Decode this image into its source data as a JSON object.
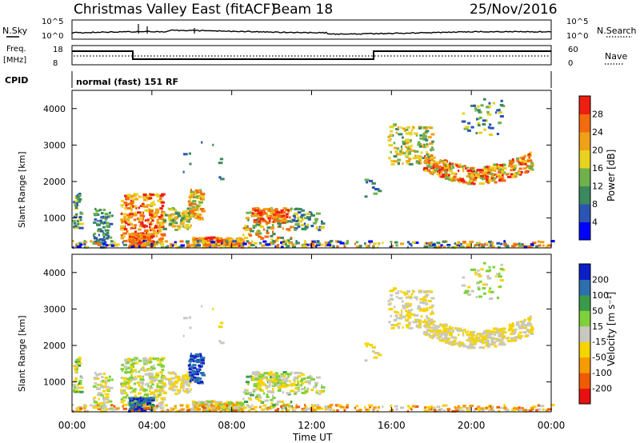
{
  "header": {
    "title": "Christmas Valley East (fitACF)",
    "beam": "Beam 18",
    "date": "25/Nov/2016"
  },
  "status_panels": {
    "nsky_label": "N.Sky",
    "nsearch_label": "N.Search",
    "freq_label_1": "Freq.",
    "freq_label_2": "[MHz]",
    "nave_label": "Nave",
    "cpid_label": "CPID",
    "left_ticks_top": [
      "10^5",
      "10^0"
    ],
    "right_ticks_top": [
      "10^5",
      "10^0"
    ],
    "left_ticks_freq": [
      "18",
      "8"
    ],
    "right_ticks_nave": [
      "60",
      "0"
    ],
    "cpid_text": "normal (fast) 151 RF"
  },
  "chart_data": [
    {
      "type": "heatmap",
      "name": "power",
      "ylabel": "Slant Range [km]",
      "yticks": [
        "1000",
        "2000",
        "3000",
        "4000"
      ],
      "ylim": [
        180,
        4500
      ],
      "xlim_hours": [
        0,
        24
      ],
      "colorbar_label": "Power [dB]",
      "colorbar_ticks": [
        "4",
        "8",
        "12",
        "16",
        "20",
        "24",
        "28"
      ],
      "colorbar_colors": [
        "#0000ff",
        "#2b55b4",
        "#3b8a5e",
        "#6fb14a",
        "#e8d11f",
        "#f0a116",
        "#f46a0f",
        "#ee1e10"
      ]
    },
    {
      "type": "heatmap",
      "name": "velocity",
      "ylabel": "Slant Range [km]",
      "yticks": [
        "1000",
        "2000",
        "3000",
        "4000"
      ],
      "ylim": [
        180,
        4500
      ],
      "xlim_hours": [
        0,
        24
      ],
      "xlabel": "Time UT",
      "xticks": [
        "00:00",
        "04:00",
        "08:00",
        "12:00",
        "16:00",
        "20:00",
        "00:00"
      ],
      "colorbar_label": "Velocity [m s⁻¹]",
      "colorbar_ticks": [
        "200",
        "100",
        "50",
        "15",
        "-15",
        "-50",
        "-100",
        "-200"
      ],
      "colorbar_colors": [
        "#0c1ec8",
        "#2b6fb0",
        "#3a9b4a",
        "#7fd13b",
        "#c8c8c0",
        "#f5d400",
        "#f59a00",
        "#f05a00",
        "#e81010"
      ]
    }
  ]
}
